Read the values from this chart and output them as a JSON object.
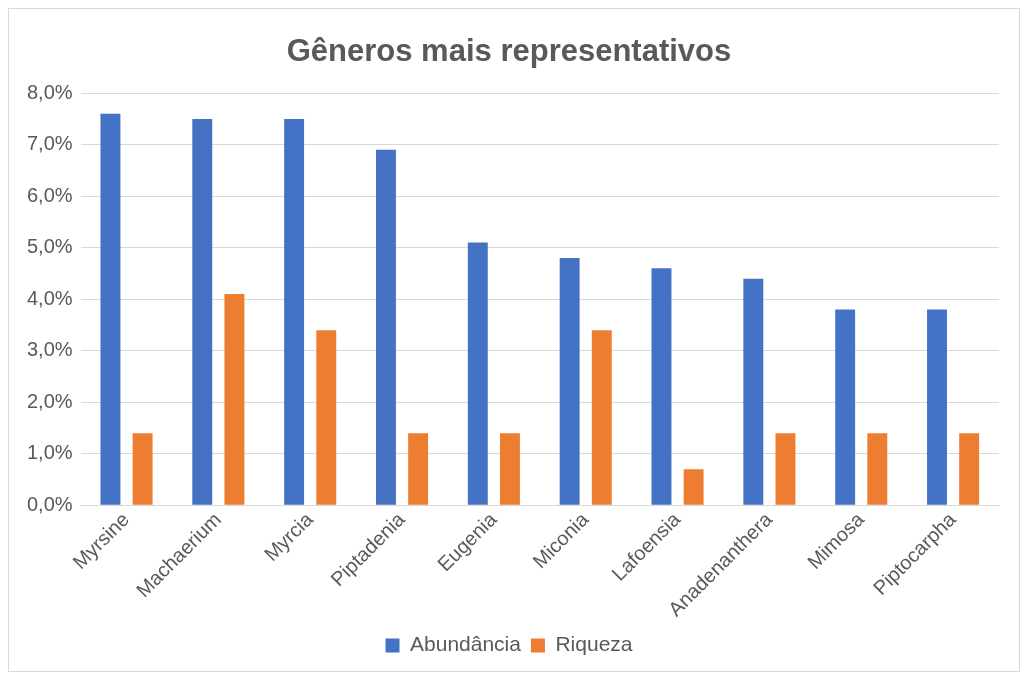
{
  "chart_data": {
    "type": "bar",
    "title": "Gêneros mais representativos",
    "categories": [
      "Myrsine",
      "Machaerium",
      "Myrcia",
      "Piptadenia",
      "Eugenia",
      "Miconia",
      "Lafoensia",
      "Anadenanthera",
      "Mimosa",
      "Piptocarpha"
    ],
    "series": [
      {
        "name": "Abundância",
        "color": "#4472c4",
        "values": [
          7.6,
          7.5,
          7.5,
          6.9,
          5.1,
          4.8,
          4.6,
          4.4,
          3.8,
          3.8
        ]
      },
      {
        "name": "Riqueza",
        "color": "#ed7d31",
        "values": [
          1.4,
          4.1,
          3.4,
          1.4,
          1.4,
          3.4,
          0.7,
          1.4,
          1.4,
          1.4
        ]
      }
    ],
    "ylim": [
      0,
      8
    ],
    "yticks": [
      {
        "value": 0,
        "label": "0,0%"
      },
      {
        "value": 1,
        "label": "1,0%"
      },
      {
        "value": 2,
        "label": "2,0%"
      },
      {
        "value": 3,
        "label": "3,0%"
      },
      {
        "value": 4,
        "label": "4,0%"
      },
      {
        "value": 5,
        "label": "5,0%"
      },
      {
        "value": 6,
        "label": "6,0%"
      },
      {
        "value": 7,
        "label": "7,0%"
      },
      {
        "value": 8,
        "label": "8,0%"
      }
    ],
    "grid": "y",
    "legend": "bottom"
  }
}
